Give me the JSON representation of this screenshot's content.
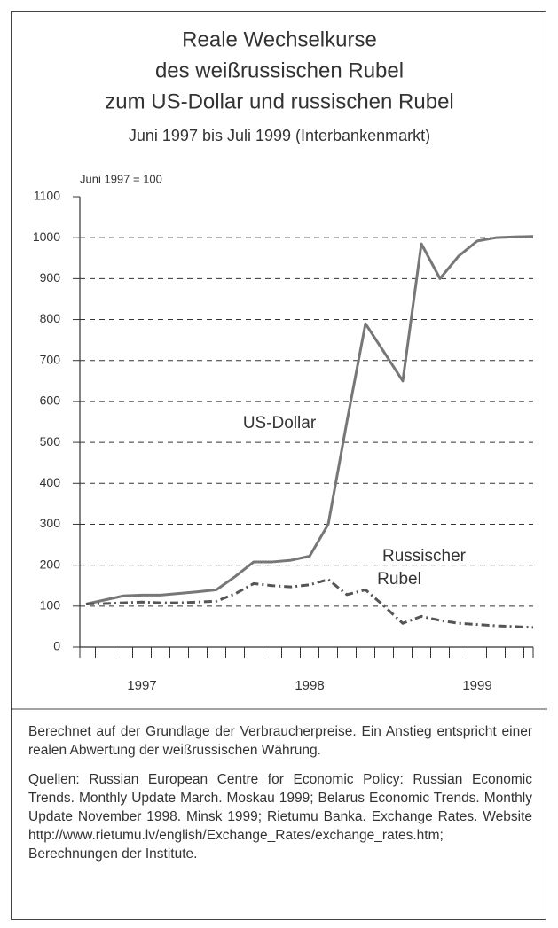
{
  "chart_data": {
    "type": "line",
    "title": [
      "Reale Wechselkurse",
      "des weißrussischen Rubel",
      "zum US-Dollar und russischen Rubel"
    ],
    "subtitle": "Juni 1997 bis Juli 1999 (Interbankenmarkt)",
    "y_label": "Juni 1997 = 100",
    "categories": [
      null,
      null,
      null,
      "1997",
      null,
      null,
      null,
      null,
      null,
      null,
      null,
      null,
      "1998",
      null,
      null,
      null,
      null,
      null,
      null,
      null,
      null,
      "1999",
      null,
      null,
      null
    ],
    "series": [
      {
        "name": "US-Dollar",
        "color": "#777777",
        "style": "solid",
        "values": [
          105,
          115,
          125,
          127,
          127,
          131,
          135,
          140,
          172,
          208,
          208,
          212,
          222,
          300,
          550,
          790,
          720,
          650,
          985,
          900,
          955,
          992,
          1000,
          1002,
          1003
        ]
      },
      {
        "name": "Russischer Rubel",
        "color": "#555555",
        "style": "dashdot",
        "values": [
          105,
          106,
          108,
          110,
          108,
          108,
          110,
          112,
          130,
          155,
          150,
          147,
          152,
          165,
          128,
          140,
          100,
          58,
          75,
          65,
          58,
          55,
          52,
          50,
          48
        ]
      }
    ],
    "ylim": [
      0,
      1100
    ],
    "yticks": [
      0,
      100,
      200,
      300,
      400,
      500,
      600,
      700,
      800,
      900,
      1000,
      1100
    ],
    "grid": true
  },
  "notes": [
    "Berechnet auf der Grundlage der Verbraucherpreise. Ein Anstieg entspricht einer realen Abwertung der weißrussischen Währung.",
    "Quellen: Russian European Centre for Economic Policy: Russian Economic Trends. Monthly Update March. Moskau 1999; Belarus Economic Trends. Monthly Update November 1998. Minsk 1999; Rietumu Banka. Exchange Rates. Website http://www.rietumu.lv/english/Exchange_Rates/exchange_rates.htm; Berechnungen der Institute."
  ]
}
